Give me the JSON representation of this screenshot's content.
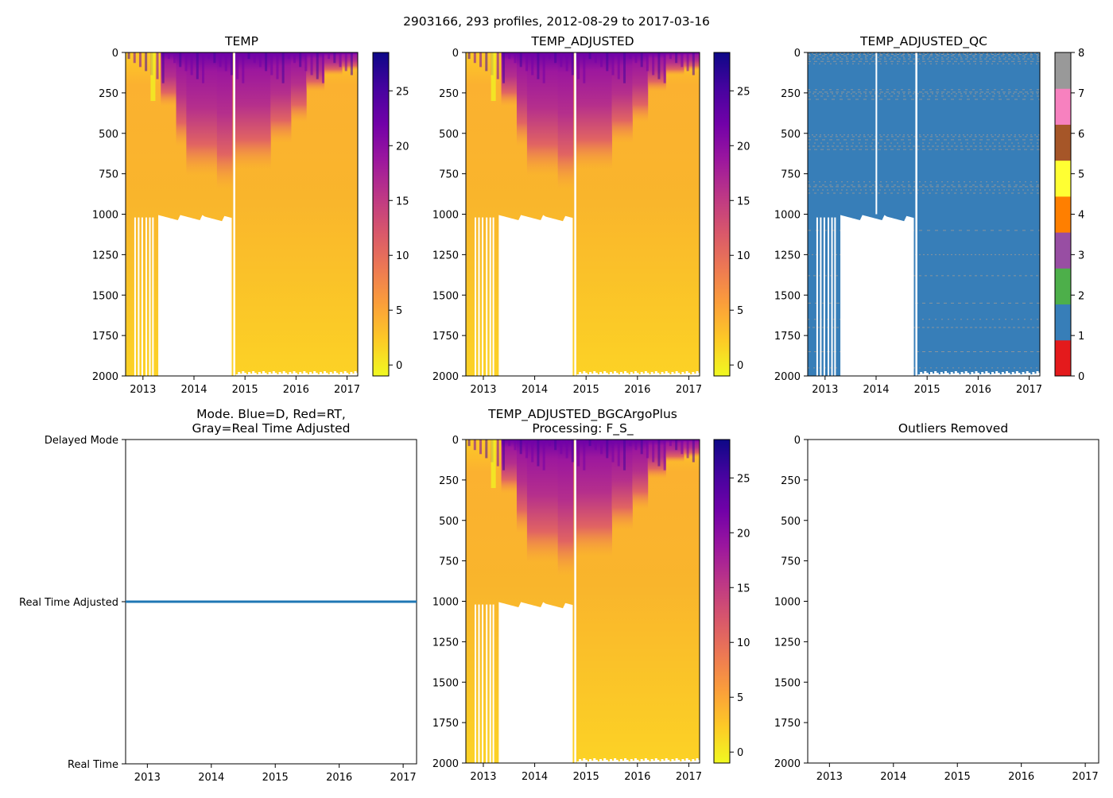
{
  "suptitle": "2903166, 293 profiles, 2012-08-29 to 2017-03-16",
  "colors": {
    "plasma": [
      "#f0f921",
      "#fdca26",
      "#fb9f3a",
      "#ed7953",
      "#d8576b",
      "#bd3786",
      "#9c179e",
      "#7201a8",
      "#46039f",
      "#0d0887"
    ],
    "qc": [
      "#e41a1c",
      "#377eb8",
      "#4daf4a",
      "#984ea3",
      "#ff7f00",
      "#ffff33",
      "#a65628",
      "#f781bf",
      "#999999"
    ],
    "mode_line": "#1f77b4"
  },
  "chart_data": [
    {
      "id": "temp",
      "type": "heatmap",
      "title": "TEMP",
      "xlabel": "",
      "ylabel": "",
      "x_ticks": [
        "2013",
        "2014",
        "2015",
        "2016",
        "2017"
      ],
      "y_ticks": [
        "0",
        "250",
        "500",
        "750",
        "1000",
        "1250",
        "1500",
        "1750",
        "2000"
      ],
      "xlim": [
        2012.66,
        2017.21
      ],
      "ylim": [
        2000,
        0
      ],
      "colorbar": {
        "ticks": [
          "0",
          "5",
          "10",
          "15",
          "20",
          "25"
        ],
        "range": [
          -1,
          28.5
        ]
      },
      "gap_depth_start": 1020,
      "gap_x_range": [
        2013.3,
        2014.75
      ]
    },
    {
      "id": "temp_adjusted",
      "type": "heatmap",
      "title": "TEMP_ADJUSTED",
      "xlabel": "",
      "ylabel": "",
      "x_ticks": [
        "2013",
        "2014",
        "2015",
        "2016",
        "2017"
      ],
      "y_ticks": [
        "0",
        "250",
        "500",
        "750",
        "1000",
        "1250",
        "1500",
        "1750",
        "2000"
      ],
      "xlim": [
        2012.66,
        2017.21
      ],
      "ylim": [
        2000,
        0
      ],
      "colorbar": {
        "ticks": [
          "0",
          "5",
          "10",
          "15",
          "20",
          "25"
        ],
        "range": [
          -1,
          28.5
        ]
      }
    },
    {
      "id": "temp_adjusted_qc",
      "type": "heatmap",
      "title": "TEMP_ADJUSTED_QC",
      "xlabel": "",
      "ylabel": "",
      "x_ticks": [
        "2013",
        "2014",
        "2015",
        "2016",
        "2017"
      ],
      "y_ticks": [
        "0",
        "250",
        "500",
        "750",
        "1000",
        "1250",
        "1500",
        "1750",
        "2000"
      ],
      "xlim": [
        2012.66,
        2017.21
      ],
      "ylim": [
        2000,
        0
      ],
      "dominant_flag": 1,
      "colorbar": {
        "ticks": [
          "0",
          "1",
          "2",
          "3",
          "4",
          "5",
          "6",
          "7",
          "8"
        ],
        "range": [
          0,
          8
        ]
      }
    },
    {
      "id": "mode",
      "type": "line",
      "title_lines": [
        "Mode. Blue=D, Red=RT,",
        "Gray=Real Time Adjusted"
      ],
      "xlabel": "",
      "ylabel": "",
      "x_ticks": [
        "2013",
        "2014",
        "2015",
        "2016",
        "2017"
      ],
      "y_categories": [
        "Delayed Mode",
        "Real Time Adjusted",
        "Real Time"
      ],
      "xlim": [
        2012.66,
        2017.21
      ],
      "series": [
        {
          "name": "mode",
          "value": "Real Time Adjusted",
          "x": [
            2012.66,
            2017.21
          ]
        }
      ]
    },
    {
      "id": "temp_bgc",
      "type": "heatmap",
      "title_lines": [
        "TEMP_ADJUSTED_BGCArgoPlus",
        "Processing: F_S_"
      ],
      "xlabel": "",
      "ylabel": "",
      "x_ticks": [
        "2013",
        "2014",
        "2015",
        "2016",
        "2017"
      ],
      "y_ticks": [
        "0",
        "250",
        "500",
        "750",
        "1000",
        "1250",
        "1500",
        "1750",
        "2000"
      ],
      "xlim": [
        2012.66,
        2017.21
      ],
      "ylim": [
        2000,
        0
      ],
      "colorbar": {
        "ticks": [
          "0",
          "5",
          "10",
          "15",
          "20",
          "25"
        ],
        "range": [
          -1,
          28.5
        ]
      }
    },
    {
      "id": "outliers",
      "type": "scatter",
      "title": "Outliers Removed",
      "xlabel": "",
      "ylabel": "",
      "x_ticks": [
        "2013",
        "2014",
        "2015",
        "2016",
        "2017"
      ],
      "y_ticks": [
        "0",
        "250",
        "500",
        "750",
        "1000",
        "1250",
        "1500",
        "1750",
        "2000"
      ],
      "xlim": [
        2012.66,
        2017.21
      ],
      "ylim": [
        2000,
        0
      ],
      "points": []
    }
  ]
}
